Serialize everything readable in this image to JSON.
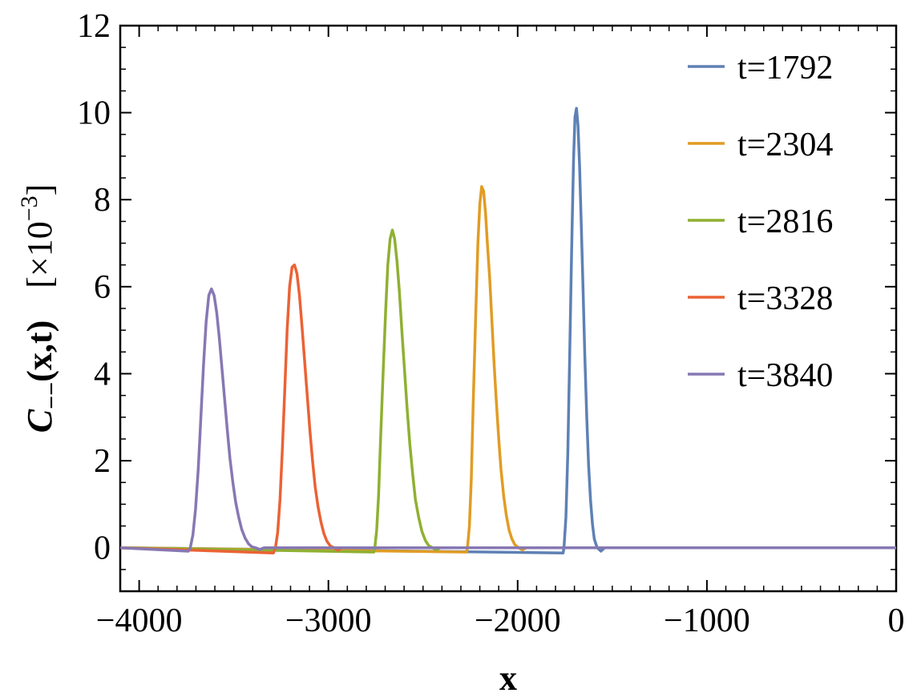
{
  "chart_data": {
    "type": "line",
    "title": "",
    "xlabel": "x",
    "ylabel_main": "C",
    "ylabel_sub": "−−",
    "ylabel_arg": "(x,t)",
    "ylabel_scale": "[×10",
    "ylabel_scale_exp": "−3",
    "ylabel_scale_close": "]",
    "xlim": [
      -4100,
      0
    ],
    "ylim": [
      -1,
      12
    ],
    "xticks": [
      -4000,
      -3000,
      -2000,
      -1000,
      0
    ],
    "xtick_labels": [
      "−4000",
      "−3000",
      "−2000",
      "−1000",
      "0"
    ],
    "yticks": [
      0,
      2,
      4,
      6,
      8,
      10,
      12
    ],
    "ytick_labels": [
      "0",
      "2",
      "4",
      "6",
      "8",
      "10",
      "12"
    ],
    "legend_position": "top-right",
    "grid": false,
    "series": [
      {
        "name": "t=1792",
        "color": "#5E81B5",
        "x": [
          -4100,
          -1760,
          -1755,
          -1745,
          -1735,
          -1725,
          -1715,
          -1705,
          -1697,
          -1689,
          -1681,
          -1673,
          -1665,
          -1655,
          -1645,
          -1635,
          -1625,
          -1615,
          -1605,
          -1595,
          -1580,
          -1560,
          -1540,
          0
        ],
        "y": [
          0,
          -0.12,
          0,
          0.7,
          2.2,
          4.4,
          6.8,
          8.9,
          9.9,
          10.1,
          9.7,
          8.8,
          7.6,
          6.0,
          4.4,
          3.0,
          1.9,
          1.1,
          0.55,
          0.2,
          0.0,
          -0.08,
          0,
          0
        ]
      },
      {
        "name": "t=2304",
        "color": "#E19C24",
        "x": [
          -4100,
          -2270,
          -2265,
          -2255,
          -2245,
          -2235,
          -2222,
          -2210,
          -2200,
          -2190,
          -2180,
          -2170,
          -2160,
          -2148,
          -2136,
          -2124,
          -2112,
          -2100,
          -2088,
          -2074,
          -2060,
          -2045,
          -2030,
          -2015,
          -1995,
          -1975,
          -1955,
          0
        ],
        "y": [
          0,
          -0.1,
          0,
          0.5,
          1.6,
          3.3,
          5.3,
          7.0,
          7.9,
          8.3,
          8.2,
          7.7,
          7.0,
          6.2,
          5.2,
          4.2,
          3.3,
          2.5,
          1.8,
          1.2,
          0.75,
          0.4,
          0.2,
          0.07,
          0,
          -0.05,
          0,
          0
        ]
      },
      {
        "name": "t=2816",
        "color": "#8FB032",
        "x": [
          -4100,
          -2760,
          -2755,
          -2745,
          -2735,
          -2725,
          -2712,
          -2698,
          -2686,
          -2674,
          -2662,
          -2650,
          -2638,
          -2625,
          -2612,
          -2598,
          -2584,
          -2570,
          -2555,
          -2540,
          -2523,
          -2506,
          -2488,
          -2470,
          -2450,
          -2430,
          -2410,
          0
        ],
        "y": [
          0,
          -0.1,
          0,
          0.4,
          1.2,
          2.4,
          3.9,
          5.4,
          6.5,
          7.1,
          7.3,
          7.1,
          6.6,
          5.9,
          5.0,
          4.1,
          3.2,
          2.4,
          1.7,
          1.1,
          0.7,
          0.38,
          0.17,
          0.05,
          0,
          -0.05,
          0,
          0
        ]
      },
      {
        "name": "t=3328",
        "color": "#EB6235",
        "x": [
          -4100,
          -3290,
          -3280,
          -3268,
          -3256,
          -3244,
          -3231,
          -3218,
          -3205,
          -3192,
          -3179,
          -3166,
          -3153,
          -3140,
          -3126,
          -3112,
          -3098,
          -3084,
          -3070,
          -3055,
          -3040,
          -3024,
          -3008,
          -2990,
          -2970,
          -2950,
          -2930,
          -2900,
          0
        ],
        "y": [
          0,
          -0.12,
          0,
          0.35,
          1.1,
          2.2,
          3.6,
          5.0,
          6.0,
          6.45,
          6.5,
          6.3,
          5.8,
          5.1,
          4.3,
          3.5,
          2.7,
          2.0,
          1.4,
          0.95,
          0.6,
          0.33,
          0.15,
          0.04,
          0,
          -0.06,
          0,
          0,
          0
        ]
      },
      {
        "name": "t=3840",
        "color": "#8778B3",
        "x": [
          -4100,
          -3740,
          -3730,
          -3716,
          -3702,
          -3688,
          -3674,
          -3660,
          -3646,
          -3632,
          -3618,
          -3604,
          -3590,
          -3576,
          -3562,
          -3548,
          -3534,
          -3520,
          -3505,
          -3490,
          -3474,
          -3458,
          -3440,
          -3422,
          -3404,
          -3384,
          -3364,
          -3340,
          0
        ],
        "y": [
          0,
          -0.08,
          0,
          0.3,
          0.9,
          1.8,
          3.0,
          4.2,
          5.2,
          5.8,
          5.95,
          5.8,
          5.4,
          4.8,
          4.1,
          3.4,
          2.7,
          2.05,
          1.5,
          1.05,
          0.7,
          0.42,
          0.22,
          0.09,
          0.02,
          0,
          -0.04,
          0,
          0
        ]
      }
    ]
  }
}
